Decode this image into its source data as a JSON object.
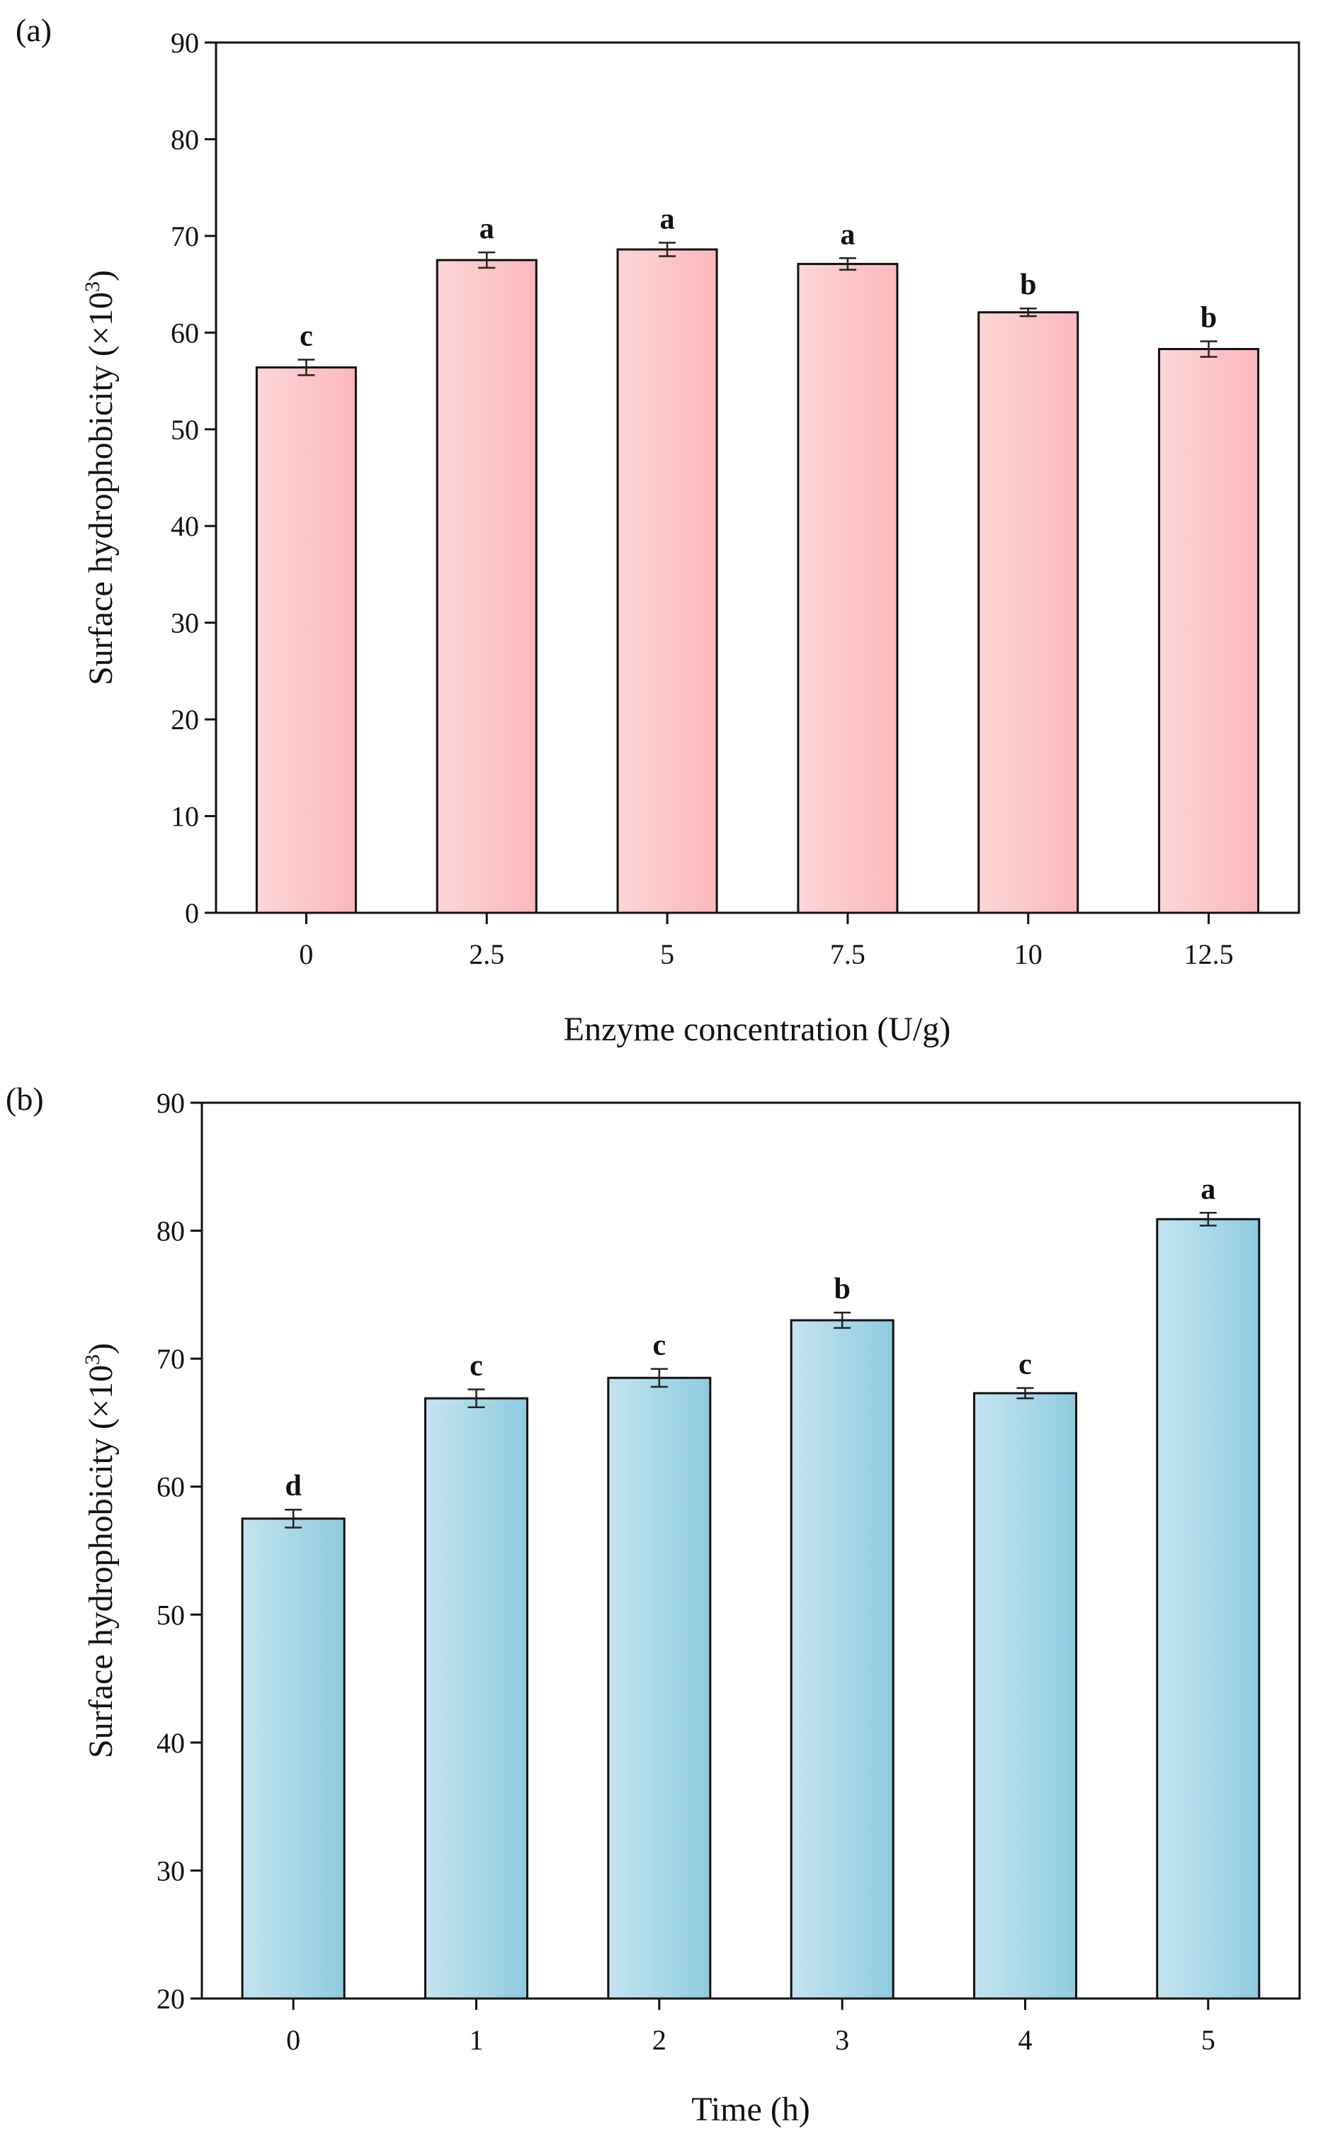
{
  "chart_data": [
    {
      "panel_label": "(a)",
      "type": "bar",
      "categories": [
        "0",
        "2.5",
        "5",
        "7.5",
        "10",
        "12.5"
      ],
      "values": [
        56.4,
        67.5,
        68.6,
        67.1,
        62.1,
        58.3
      ],
      "errors": [
        0.8,
        0.8,
        0.7,
        0.6,
        0.4,
        0.8
      ],
      "significance": [
        "c",
        "a",
        "a",
        "a",
        "b",
        "b"
      ],
      "xlabel": "Enzyme concentration (U/g)",
      "ylabel": "Surface hydrophobicity (×10",
      "ylabel_superscript": "3",
      "ylabel_suffix": ")",
      "ylim": [
        0,
        90
      ],
      "yticks": [
        "0",
        "10",
        "20",
        "30",
        "40",
        "50",
        "60",
        "70",
        "80",
        "90"
      ],
      "color": "#fbb8bb",
      "color_light": "#fdd5d7",
      "grid": false
    },
    {
      "panel_label": "(b)",
      "type": "bar",
      "categories": [
        "0",
        "1",
        "2",
        "3",
        "4",
        "5"
      ],
      "values": [
        57.5,
        66.9,
        68.5,
        73.0,
        67.3,
        80.9
      ],
      "errors": [
        0.7,
        0.7,
        0.7,
        0.6,
        0.4,
        0.5
      ],
      "significance": [
        "d",
        "c",
        "c",
        "b",
        "c",
        "a"
      ],
      "xlabel": "Time (h)",
      "ylabel": "Surface hydrophobicity (×10",
      "ylabel_superscript": "3",
      "ylabel_suffix": ")",
      "ylim": [
        20,
        90
      ],
      "yticks": [
        "20",
        "30",
        "40",
        "50",
        "60",
        "70",
        "80",
        "90"
      ],
      "color": "#8ecbe0",
      "color_light": "#c4e4ef",
      "grid": false
    }
  ]
}
